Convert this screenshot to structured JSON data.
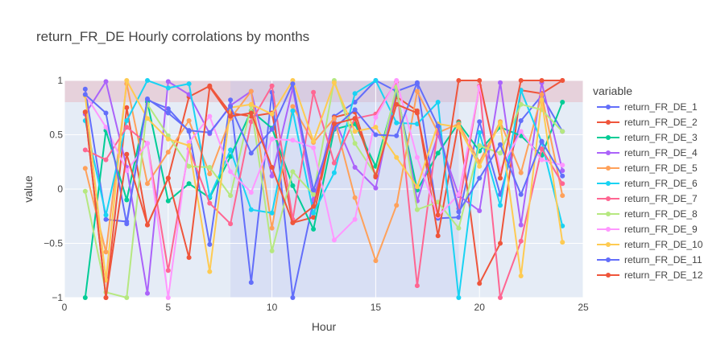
{
  "chart_data": {
    "type": "line",
    "title": "return_FR_DE Hourly corrolations by months",
    "xlabel": "Hour",
    "ylabel": "value",
    "xlim": [
      0,
      25
    ],
    "ylim": [
      -1,
      1
    ],
    "xticks": [
      0,
      5,
      10,
      15,
      20,
      25
    ],
    "yticks": [
      -1,
      -0.5,
      0,
      0.5,
      1
    ],
    "xtick_labels": [
      "0",
      "5",
      "10",
      "15",
      "20",
      "25"
    ],
    "ytick_labels": [
      "−1",
      "−0.5",
      "0",
      "0.5",
      "1"
    ],
    "grid": true,
    "legend_title": "variable",
    "legend_position": "right",
    "shapes": [
      {
        "kind": "hband",
        "y0": 0.8,
        "y1": 1.0,
        "color": "#e8a0a8",
        "opacity": 0.35
      },
      {
        "kind": "vband",
        "x0": 8,
        "x1": 19,
        "color": "#b8c0f0",
        "opacity": 0.3
      }
    ],
    "x": [
      1,
      2,
      3,
      4,
      5,
      6,
      7,
      8,
      9,
      10,
      11,
      12,
      13,
      14,
      15,
      16,
      17,
      18,
      19,
      20,
      21,
      22,
      23,
      24
    ],
    "series": [
      {
        "name": "return_FR_DE_1",
        "color": "#636efa",
        "values": [
          0.92,
          -0.28,
          -0.3,
          0.82,
          0.74,
          0.53,
          -0.51,
          0.82,
          -0.86,
          0.89,
          -1.0,
          -0.11,
          0.67,
          0.8,
          1.0,
          0.9,
          0.97,
          -0.27,
          -0.26,
          0.62,
          -0.05,
          0.63,
          0.86,
          0.53
        ]
      },
      {
        "name": "return_FR_DE_2",
        "color": "#ef553b",
        "values": [
          0.71,
          -1.0,
          0.75,
          -0.33,
          0.1,
          0.85,
          0.95,
          0.7,
          0.67,
          0.7,
          -0.31,
          -0.26,
          0.66,
          0.71,
          0.11,
          0.85,
          0.72,
          -0.43,
          0.62,
          -0.87,
          -0.5,
          0.91,
          0.88,
          1.0
        ]
      },
      {
        "name": "return_FR_DE_3",
        "color": "#00cc96",
        "values": [
          -1.0,
          0.54,
          -0.1,
          0.8,
          -0.11,
          0.05,
          -0.08,
          0.3,
          0.72,
          0.56,
          0.03,
          -0.37,
          0.55,
          0.6,
          0.21,
          0.9,
          -0.01,
          0.33,
          0.61,
          0.35,
          0.57,
          0.49,
          0.31,
          0.8
        ]
      },
      {
        "name": "return_FR_DE_4",
        "color": "#ab63fa",
        "values": [
          0.69,
          0.99,
          0.2,
          -0.96,
          0.99,
          0.87,
          0.51,
          0.77,
          0.9,
          0.12,
          0.93,
          -0.1,
          0.65,
          0.2,
          0.01,
          0.93,
          -0.11,
          0.5,
          -0.06,
          -0.2,
          0.98,
          -0.33,
          0.98,
          0.17
        ]
      },
      {
        "name": "return_FR_DE_5",
        "color": "#ffa15a",
        "values": [
          0.19,
          -0.58,
          0.97,
          0.05,
          0.34,
          0.63,
          0.14,
          0.65,
          0.9,
          -0.36,
          0.76,
          0.43,
          0.65,
          -0.08,
          -0.66,
          -0.15,
          0.9,
          0.52,
          0.6,
          0.25,
          0.62,
          0.15,
          0.87,
          -0.06
        ]
      },
      {
        "name": "return_FR_DE_6",
        "color": "#19d3f3",
        "values": [
          0.63,
          -0.24,
          0.63,
          1.0,
          0.93,
          0.97,
          -0.07,
          0.36,
          -0.19,
          -0.22,
          0.72,
          -0.22,
          0.15,
          0.88,
          1.0,
          0.61,
          0.6,
          0.8,
          -1.0,
          0.52,
          -0.15,
          0.91,
          0.43,
          -0.34
        ]
      },
      {
        "name": "return_FR_DE_7",
        "color": "#ff6692",
        "values": [
          0.36,
          0.27,
          0.57,
          0.42,
          -0.75,
          0.37,
          -0.13,
          -0.32,
          0.62,
          0.95,
          -0.28,
          0.89,
          0.24,
          0.65,
          0.69,
          0.99,
          -0.89,
          0.56,
          -0.18,
          0.95,
          -1.0,
          -0.48,
          0.37,
          0.05
        ]
      },
      {
        "name": "return_FR_DE_8",
        "color": "#b6e880",
        "values": [
          -0.02,
          -0.95,
          -1.0,
          0.78,
          0.49,
          0.21,
          0.2,
          -0.06,
          0.77,
          -0.57,
          0.16,
          -0.05,
          1.0,
          0.42,
          0.13,
          0.94,
          -0.19,
          -0.12,
          -0.36,
          0.4,
          0.33,
          0.78,
          0.73,
          0.53
        ]
      },
      {
        "name": "return_FR_DE_9",
        "color": "#ff97ff",
        "values": [
          0.87,
          0.57,
          0.17,
          0.42,
          -1.0,
          0.43,
          0.67,
          0.16,
          -0.03,
          0.46,
          0.45,
          0.38,
          -0.47,
          -0.28,
          0.66,
          1.0,
          0.29,
          -0.25,
          -0.05,
          0.94,
          0.18,
          0.53,
          0.27,
          0.22
        ]
      },
      {
        "name": "return_FR_DE_10",
        "color": "#fecb52",
        "values": [
          0.86,
          -0.84,
          1.0,
          0.65,
          0.46,
          0.4,
          -0.76,
          0.75,
          0.78,
          0.69,
          1.0,
          0.44,
          0.98,
          0.53,
          0.57,
          0.29,
          0.02,
          0.6,
          0.57,
          0.21,
          0.61,
          -0.8,
          0.82,
          -0.49
        ]
      },
      {
        "name": "return_FR_DE_11",
        "color": "#636efa",
        "values": [
          0.87,
          0.7,
          -0.32,
          0.83,
          0.7,
          0.54,
          0.52,
          0.76,
          0.33,
          0.55,
          0.97,
          -0.01,
          0.56,
          0.73,
          0.5,
          0.49,
          0.98,
          0.58,
          -0.21,
          0.1,
          0.41,
          -0.05,
          0.44,
          0.12
        ]
      },
      {
        "name": "return_FR_DE_12",
        "color": "#ef553b",
        "values": [
          0.71,
          -1.0,
          0.32,
          -0.33,
          0.1,
          -0.63,
          0.94,
          0.67,
          0.7,
          0.2,
          -0.31,
          -0.16,
          0.6,
          0.65,
          0.12,
          0.78,
          0.7,
          -0.24,
          1.0,
          1.0,
          0.1,
          1.0,
          1.0,
          1.0
        ]
      }
    ]
  }
}
